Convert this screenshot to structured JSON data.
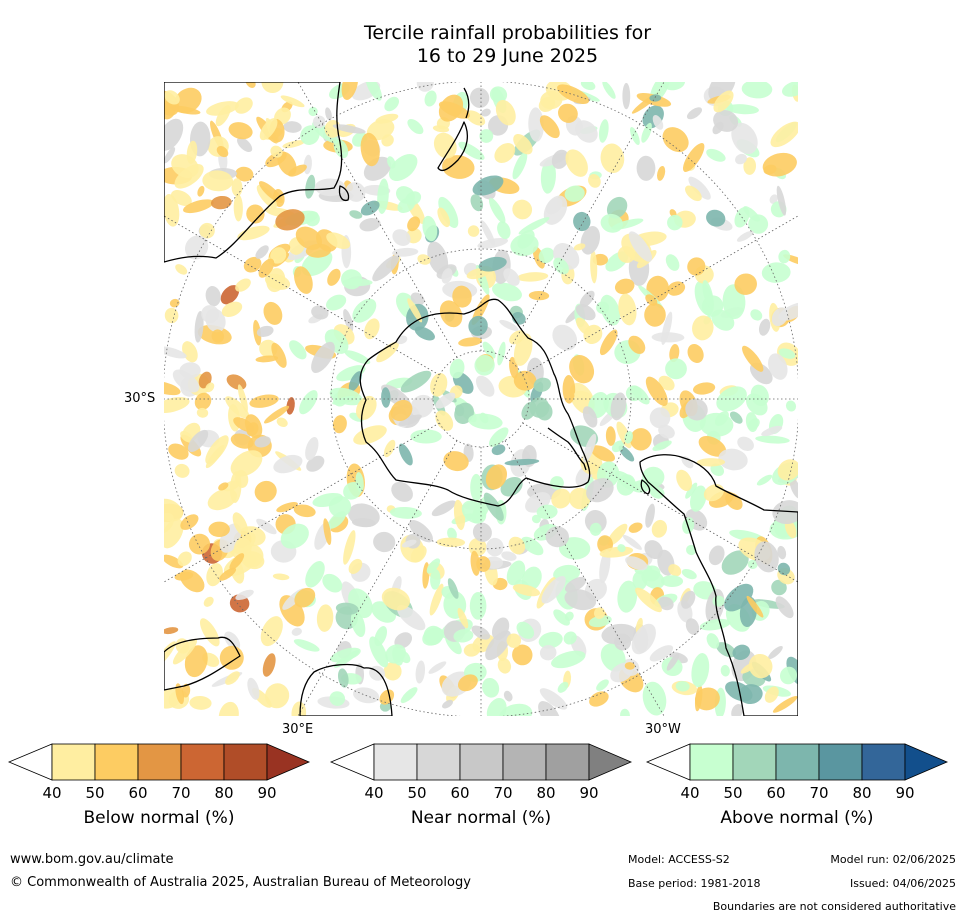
{
  "title": {
    "line1": "Tercile rainfall probabilities for",
    "line2": "16 to 29 June 2025"
  },
  "map": {
    "projection": "south-polar-stereographic",
    "labels": {
      "lat": "30°S",
      "lon_east": "30°E",
      "lon_west": "30°W"
    },
    "coastline_color": "#000000",
    "border_color": "#999999",
    "graticule_color": "#666666"
  },
  "legend": {
    "below": {
      "title": "Below normal (%)",
      "ticks": [
        "40",
        "50",
        "60",
        "70",
        "80",
        "90"
      ],
      "colors": [
        "#ffffff",
        "#ffeea1",
        "#fdcc62",
        "#e39644",
        "#cc6633",
        "#b04d28",
        "#993322"
      ]
    },
    "near": {
      "title": "Near normal (%)",
      "ticks": [
        "40",
        "50",
        "60",
        "70",
        "80",
        "90"
      ],
      "colors": [
        "#ffffff",
        "#e6e6e6",
        "#d7d7d7",
        "#c8c8c8",
        "#b4b4b4",
        "#a0a0a0",
        "#808080"
      ]
    },
    "above": {
      "title": "Above normal (%)",
      "ticks": [
        "40",
        "50",
        "60",
        "70",
        "80",
        "90"
      ],
      "colors": [
        "#ffffff",
        "#c7ffd0",
        "#a2d6b9",
        "#7db6ad",
        "#5a96a0",
        "#336699",
        "#124f8c"
      ]
    }
  },
  "footer": {
    "url": "www.bom.gov.au/climate",
    "copyright": "© Commonwealth of Australia 2025, Australian Bureau of Meteorology",
    "model": "Model: ACCESS-S2",
    "model_run": "Model run: 02/06/2025",
    "base_period": "Base period: 1981-2018",
    "issued": "Issued: 04/06/2025",
    "disclaimer": "Boundaries are not considered authoritative"
  }
}
